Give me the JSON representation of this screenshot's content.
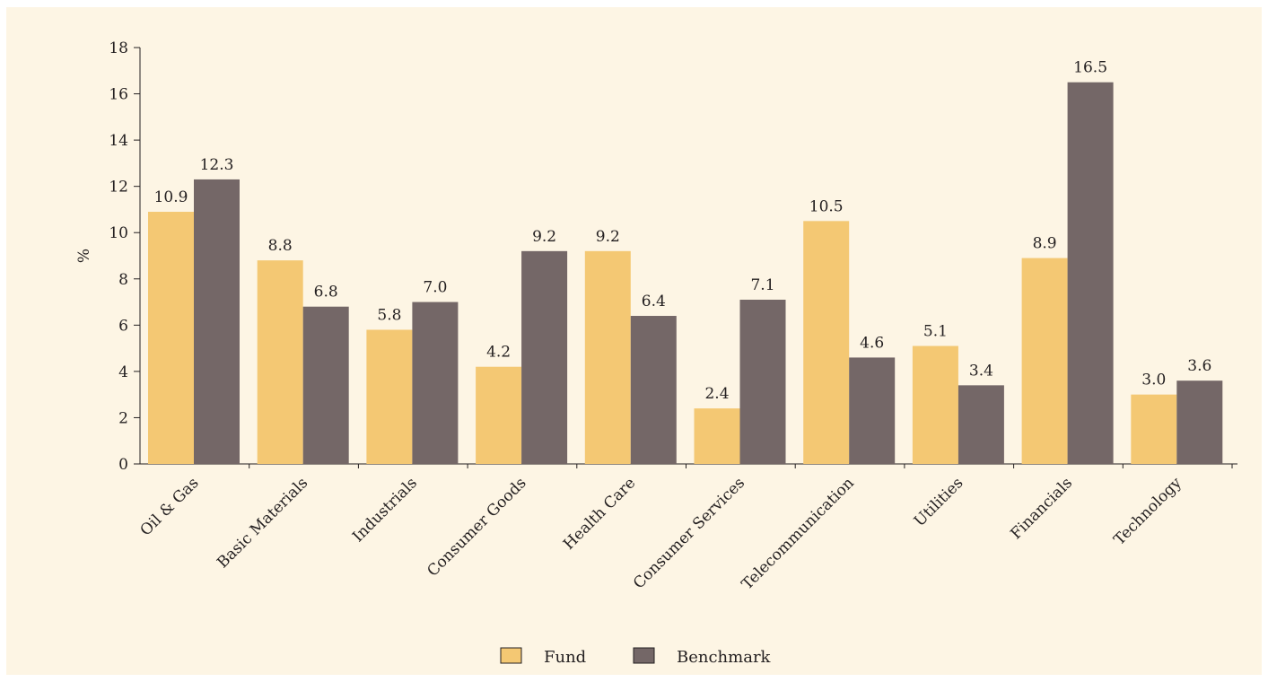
{
  "chart_data": {
    "type": "bar",
    "categories": [
      "Oil & Gas",
      "Basic Materials",
      "Industrials",
      "Consumer Goods",
      "Health Care",
      "Consumer Services",
      "Telecommunication",
      "Utilities",
      "Financials",
      "Technology"
    ],
    "series": [
      {
        "name": "Fund",
        "values": [
          10.9,
          8.8,
          5.8,
          4.2,
          9.2,
          2.4,
          10.5,
          5.1,
          8.9,
          3.0
        ],
        "color": "#f4c873"
      },
      {
        "name": "Benchmark",
        "values": [
          12.3,
          6.8,
          7.0,
          9.2,
          6.4,
          7.1,
          4.6,
          3.4,
          16.5,
          3.6
        ],
        "color": "#746767"
      }
    ],
    "ylabel": "%",
    "xlabel": "",
    "ylim": [
      0,
      18
    ],
    "yticks": [
      0,
      2,
      4,
      6,
      8,
      10,
      12,
      14,
      16,
      18
    ],
    "legend_position": "bottom-center",
    "grid": false,
    "data_labels": true,
    "background": "#fdf5e4"
  }
}
